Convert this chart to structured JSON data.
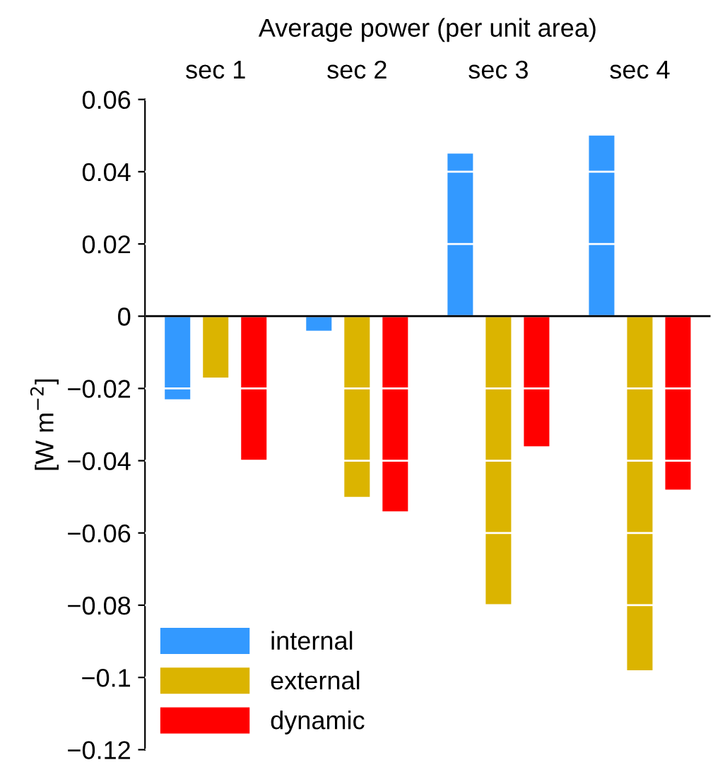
{
  "chart_data": {
    "type": "bar",
    "title": "Average power (per unit area)",
    "ylabel": "[W m$^{−2}$]",
    "categories": [
      "sec 1",
      "sec 2",
      "sec 3",
      "sec 4"
    ],
    "series": [
      {
        "name": "internal",
        "color": "#3399ff",
        "values": [
          -0.023,
          -0.004,
          0.045,
          0.05
        ]
      },
      {
        "name": "external",
        "color": "#dbb400",
        "values": [
          -0.017,
          -0.05,
          -0.08,
          -0.098
        ]
      },
      {
        "name": "dynamic",
        "color": "#ff0000",
        "values": [
          -0.04,
          -0.054,
          -0.036,
          -0.048
        ]
      }
    ],
    "ylim": [
      -0.12,
      0.06
    ],
    "yticks": [
      -0.12,
      -0.1,
      -0.08,
      -0.06,
      -0.04,
      -0.02,
      0,
      0.02,
      0.04,
      0.06
    ],
    "grid": "y",
    "legend": "bottom left"
  }
}
